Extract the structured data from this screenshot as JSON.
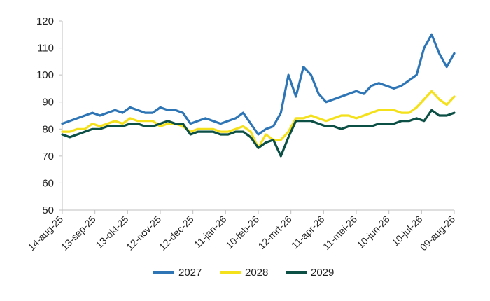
{
  "chart_data": {
    "type": "line",
    "title": "",
    "xlabel": "",
    "ylabel": "",
    "ylim": [
      50,
      120
    ],
    "yticks": [
      "50",
      "60",
      "70",
      "80",
      "90",
      "100",
      "110",
      "120"
    ],
    "xticks": [
      "14-aug-25",
      "13-sep-25",
      "13-okt-25",
      "12-nov-25",
      "12-dec-25",
      "11-jan-26",
      "10-feb-26",
      "12-mrt-26",
      "11-apr-26",
      "11-mei-26",
      "10-jun-26",
      "10-jul-26",
      "09-aug-26"
    ],
    "grid": false,
    "legend_position": "bottom",
    "x": [
      "14-aug-25",
      "21-aug-25",
      "28-aug-25",
      "4-sep-25",
      "11-sep-25",
      "18-sep-25",
      "25-sep-25",
      "2-okt-25",
      "9-okt-25",
      "16-okt-25",
      "23-okt-25",
      "30-okt-25",
      "6-nov-25",
      "13-nov-25",
      "20-nov-25",
      "27-nov-25",
      "4-dec-25",
      "11-dec-25",
      "18-dec-25",
      "25-dec-25",
      "1-jan-26",
      "8-jan-26",
      "15-jan-26",
      "22-jan-26",
      "29-jan-26",
      "5-feb-26",
      "12-feb-26",
      "19-feb-26",
      "26-feb-26",
      "5-mrt-26",
      "12-mrt-26",
      "19-mrt-26",
      "26-mrt-26",
      "2-apr-26",
      "9-apr-26",
      "16-apr-26",
      "23-apr-26",
      "30-apr-26",
      "7-mei-26",
      "14-mei-26",
      "21-mei-26",
      "28-mei-26",
      "4-jun-26",
      "11-jun-26",
      "18-jun-26",
      "25-jun-26",
      "2-jul-26",
      "9-jul-26",
      "16-jul-26",
      "23-jul-26",
      "30-jul-26",
      "6-aug-26",
      "9-aug-26"
    ],
    "series": [
      {
        "name": "2027",
        "color": "#2e75b6",
        "values": [
          82,
          83,
          84,
          85,
          86,
          85,
          86,
          87,
          86,
          88,
          87,
          86,
          86,
          88,
          87,
          87,
          86,
          82,
          83,
          84,
          83,
          82,
          83,
          84,
          86,
          82,
          78,
          80,
          81,
          86,
          100,
          92,
          103,
          100,
          93,
          90,
          91,
          92,
          93,
          94,
          93,
          96,
          97,
          96,
          95,
          96,
          98,
          100,
          110,
          115,
          108,
          103,
          108
        ]
      },
      {
        "name": "2028",
        "color": "#f4e01b",
        "values": [
          79,
          79,
          80,
          80,
          82,
          81,
          82,
          83,
          82,
          84,
          83,
          83,
          83,
          81,
          82,
          82,
          81,
          79,
          80,
          80,
          80,
          79,
          79,
          80,
          81,
          79,
          73,
          78,
          76,
          76,
          79,
          84,
          84,
          85,
          84,
          83,
          84,
          85,
          85,
          84,
          85,
          86,
          87,
          87,
          87,
          86,
          86,
          88,
          91,
          94,
          91,
          89,
          92
        ]
      },
      {
        "name": "2029",
        "color": "#0b4f45",
        "values": [
          78,
          77,
          78,
          79,
          80,
          80,
          81,
          81,
          81,
          82,
          82,
          81,
          81,
          82,
          83,
          82,
          82,
          78,
          79,
          79,
          79,
          78,
          78,
          79,
          79,
          77,
          73,
          75,
          76,
          70,
          77,
          83,
          83,
          83,
          82,
          81,
          81,
          80,
          81,
          81,
          81,
          81,
          82,
          82,
          82,
          83,
          83,
          84,
          83,
          87,
          85,
          85,
          86
        ]
      }
    ]
  }
}
